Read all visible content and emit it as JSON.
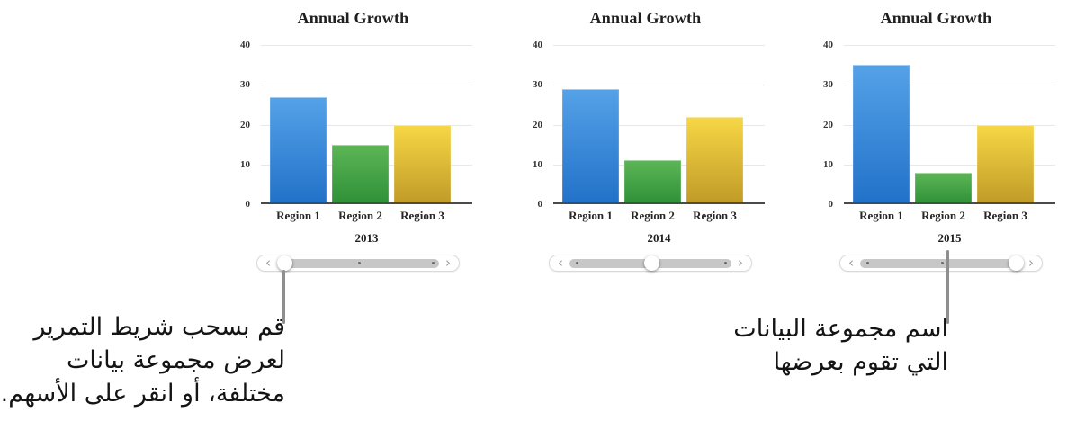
{
  "scrubber_glyphs": {
    "prev": "‹",
    "next": "›"
  },
  "series_colors": [
    {
      "name": "blue",
      "top": "#55a2e8",
      "bottom": "#2171c9"
    },
    {
      "name": "green",
      "top": "#5db656",
      "bottom": "#2e9038"
    },
    {
      "name": "yellow",
      "top": "#f7d746",
      "bottom": "#c09a27"
    }
  ],
  "chart_data": [
    {
      "type": "bar",
      "title": "Annual Growth",
      "categories": [
        "Region 1",
        "Region 2",
        "Region 3"
      ],
      "values": [
        27,
        15,
        20
      ],
      "ylim": [
        0,
        40
      ],
      "y_ticks": [
        40,
        30,
        20,
        10,
        0
      ],
      "grid": true,
      "legend_position": "none",
      "year_label": "2013",
      "scrubber": {
        "thumb_index": 0,
        "num_positions": 3
      }
    },
    {
      "type": "bar",
      "title": "Annual Growth",
      "categories": [
        "Region 1",
        "Region 2",
        "Region 3"
      ],
      "values": [
        29,
        11,
        22
      ],
      "ylim": [
        0,
        40
      ],
      "y_ticks": [
        40,
        30,
        20,
        10,
        0
      ],
      "grid": true,
      "legend_position": "none",
      "year_label": "2014",
      "scrubber": {
        "thumb_index": 1,
        "num_positions": 3
      }
    },
    {
      "type": "bar",
      "title": "Annual Growth",
      "categories": [
        "Region 1",
        "Region 2",
        "Region 3"
      ],
      "values": [
        35,
        8,
        20
      ],
      "ylim": [
        0,
        40
      ],
      "y_ticks": [
        40,
        30,
        20,
        10,
        0
      ],
      "grid": true,
      "legend_position": "none",
      "year_label": "2015",
      "scrubber": {
        "thumb_index": 2,
        "num_positions": 3
      }
    }
  ],
  "annotations": {
    "left_note": "قم بسحب شريط التمرير\nلعرض مجموعة بيانات\nمختلفة، أو انقر على الأسهم.",
    "right_note": "اسم مجموعة البيانات\nالتي تقوم بعرضها"
  }
}
